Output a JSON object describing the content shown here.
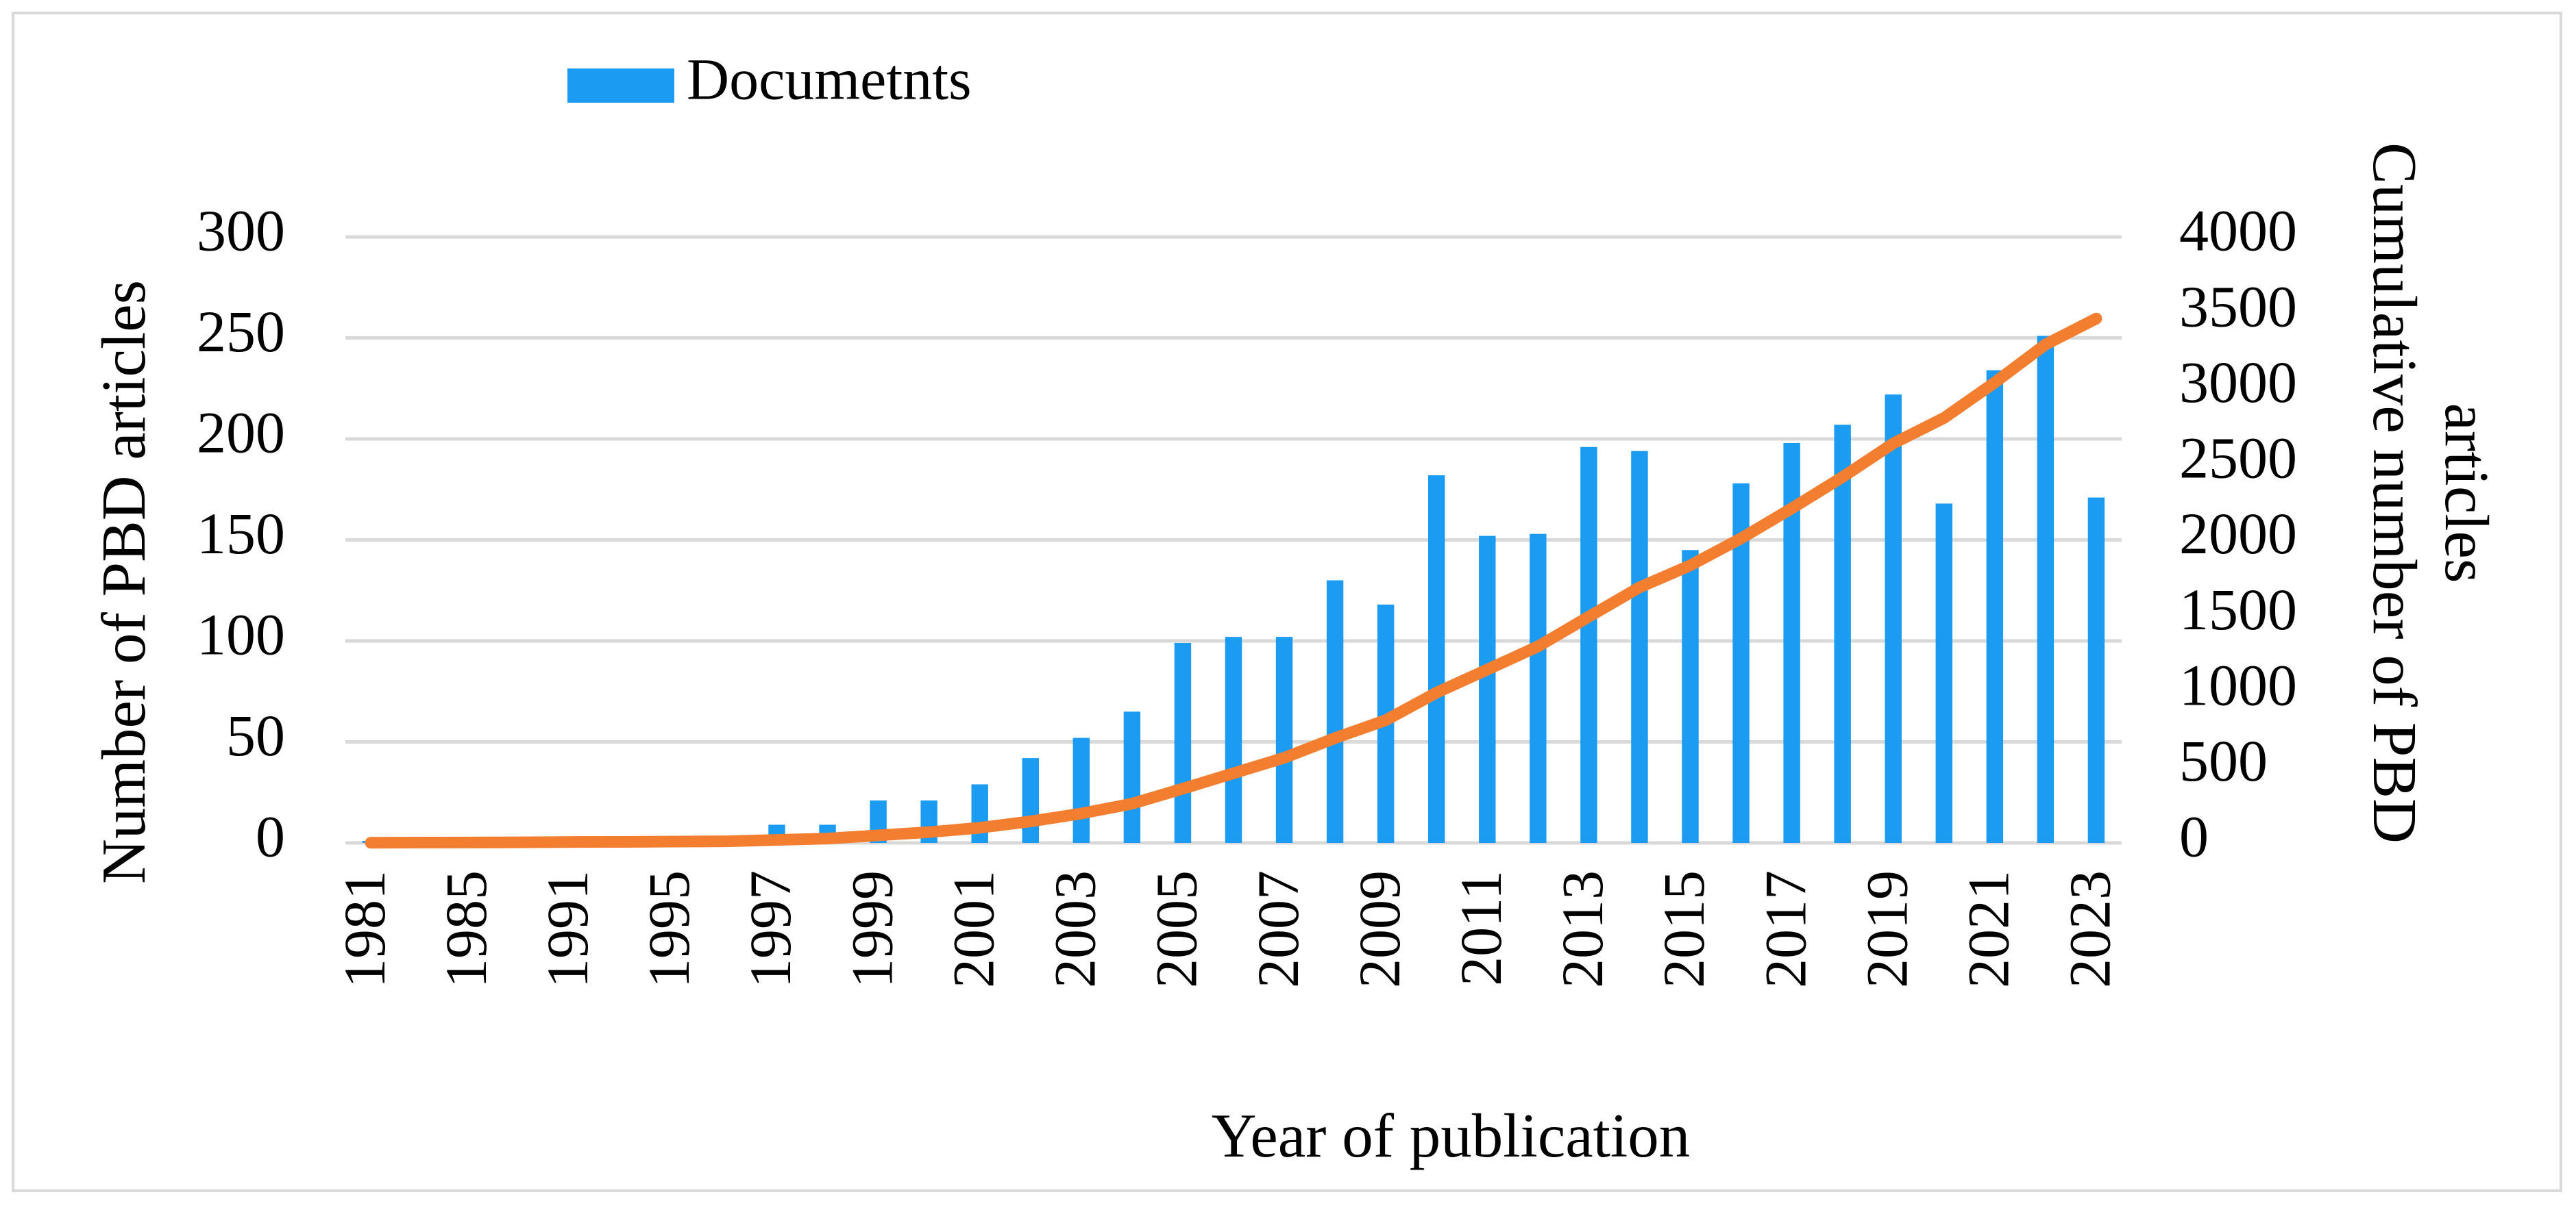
{
  "chart_data": {
    "type": "bar_line",
    "xlabel": "Year of publication",
    "ylabel": "Number of PBD articles",
    "y2label": [
      "Cumulative number of PBD",
      "articles"
    ],
    "categories": [
      "1981",
      null,
      "1985",
      null,
      "1991",
      null,
      "1995",
      null,
      "1997",
      null,
      "1999",
      null,
      "2001",
      null,
      "2003",
      null,
      "2005",
      null,
      "2007",
      null,
      "2009",
      null,
      "2011",
      null,
      "2013",
      null,
      "2015",
      null,
      "2017",
      null,
      "2019",
      null,
      "2021",
      null,
      "2023"
    ],
    "series": [
      {
        "name": "Documetnts",
        "type": "bar",
        "color": "#1b9cf2",
        "values": [
          1,
          1,
          1,
          1,
          2,
          1,
          2,
          2,
          9,
          9,
          21,
          21,
          29,
          42,
          52,
          65,
          99,
          102,
          102,
          130,
          118,
          182,
          152,
          153,
          196,
          194,
          145,
          178,
          198,
          207,
          222,
          168,
          234,
          251,
          171
        ]
      },
      {
        "type": "line",
        "axis": "y2",
        "color": "#f47e30",
        "values": [
          1,
          2,
          3,
          4,
          6,
          7,
          9,
          11,
          20,
          29,
          50,
          71,
          100,
          142,
          194,
          259,
          358,
          460,
          562,
          692,
          810,
          992,
          1144,
          1297,
          1493,
          1687,
          1832,
          2010,
          2208,
          2415,
          2637,
          2805,
          3039,
          3290,
          3461
        ]
      }
    ],
    "ylim": [
      0,
      300
    ],
    "yticks": [
      0,
      50,
      100,
      150,
      200,
      250,
      300
    ],
    "y2lim": [
      0,
      4000
    ],
    "y2ticks": [
      0,
      500,
      1000,
      1500,
      2000,
      2500,
      3000,
      3500,
      4000
    ],
    "grid": true,
    "legend": "top-left"
  }
}
